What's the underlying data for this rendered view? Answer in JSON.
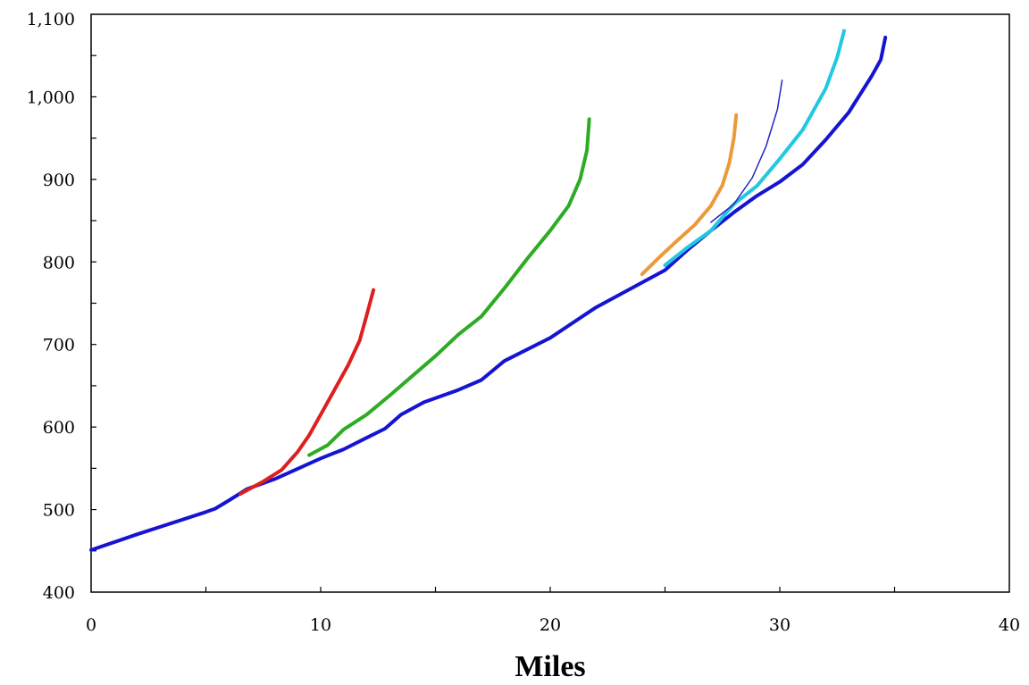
{
  "chart_data": {
    "type": "line",
    "title": "",
    "xlabel": "Miles",
    "ylabel": "",
    "xlim": [
      0,
      40
    ],
    "ylim": [
      400,
      1100
    ],
    "x_ticks": [
      0,
      10,
      20,
      30,
      40
    ],
    "x_tick_labels": [
      "0",
      "10",
      "20",
      "30",
      "40"
    ],
    "y_ticks": [
      400,
      500,
      600,
      700,
      800,
      900,
      1000,
      1100
    ],
    "y_tick_labels": [
      "400",
      "500",
      "600",
      "700",
      "800",
      "900",
      "1,000",
      "1,100"
    ],
    "grid": false,
    "legend": "none",
    "series": [
      {
        "color": "#1414d2",
        "width": 4,
        "points": [
          [
            0,
            451
          ],
          [
            2,
            470
          ],
          [
            3,
            479
          ],
          [
            5,
            497
          ],
          [
            5.4,
            501
          ],
          [
            6,
            511
          ],
          [
            6.8,
            525
          ],
          [
            8,
            537
          ],
          [
            10,
            562
          ],
          [
            11,
            573
          ],
          [
            12,
            587
          ],
          [
            12.8,
            598
          ],
          [
            13.5,
            615
          ],
          [
            14.5,
            630
          ],
          [
            16,
            645
          ],
          [
            17,
            657
          ],
          [
            18,
            680
          ],
          [
            20,
            708
          ],
          [
            22,
            745
          ],
          [
            24,
            775
          ],
          [
            25,
            790
          ],
          [
            26,
            815
          ],
          [
            27,
            838
          ],
          [
            28,
            860
          ],
          [
            29,
            880
          ],
          [
            30,
            897
          ],
          [
            31,
            918
          ],
          [
            32,
            948
          ],
          [
            33,
            981
          ],
          [
            34,
            1025
          ],
          [
            34.4,
            1045
          ],
          [
            34.6,
            1072
          ]
        ]
      },
      {
        "color": "#dd1f1f",
        "width": 4,
        "points": [
          [
            6.5,
            519
          ],
          [
            7.5,
            534
          ],
          [
            8.3,
            548
          ],
          [
            9,
            570
          ],
          [
            9.5,
            590
          ],
          [
            10,
            615
          ],
          [
            10.6,
            645
          ],
          [
            11.2,
            675
          ],
          [
            11.7,
            705
          ],
          [
            12,
            735
          ],
          [
            12.3,
            766
          ]
        ]
      },
      {
        "color": "#2dab23",
        "width": 4,
        "points": [
          [
            9.5,
            566
          ],
          [
            10.3,
            578
          ],
          [
            11,
            597
          ],
          [
            12,
            615
          ],
          [
            13,
            638
          ],
          [
            14,
            662
          ],
          [
            15,
            686
          ],
          [
            16,
            712
          ],
          [
            17,
            734
          ],
          [
            18,
            768
          ],
          [
            19,
            804
          ],
          [
            20,
            838
          ],
          [
            20.8,
            868
          ],
          [
            21.3,
            900
          ],
          [
            21.6,
            935
          ],
          [
            21.7,
            973
          ]
        ]
      },
      {
        "color": "#eb9a3a",
        "width": 4,
        "points": [
          [
            24,
            785
          ],
          [
            24.8,
            807
          ],
          [
            25.5,
            825
          ],
          [
            26.3,
            845
          ],
          [
            27,
            868
          ],
          [
            27.5,
            893
          ],
          [
            27.8,
            920
          ],
          [
            28,
            950
          ],
          [
            28.1,
            978
          ]
        ]
      },
      {
        "color": "#22c8e0",
        "width": 4,
        "points": [
          [
            25,
            796
          ],
          [
            26,
            818
          ],
          [
            27,
            838
          ],
          [
            28,
            870
          ],
          [
            29,
            892
          ],
          [
            30,
            925
          ],
          [
            31,
            960
          ],
          [
            32,
            1010
          ],
          [
            32.5,
            1048
          ],
          [
            32.8,
            1080
          ]
        ]
      },
      {
        "color": "#2525c0",
        "width": 1.5,
        "points": [
          [
            27,
            848
          ],
          [
            28,
            870
          ],
          [
            28.8,
            902
          ],
          [
            29.4,
            940
          ],
          [
            29.9,
            985
          ],
          [
            30.1,
            1020
          ]
        ]
      }
    ]
  }
}
